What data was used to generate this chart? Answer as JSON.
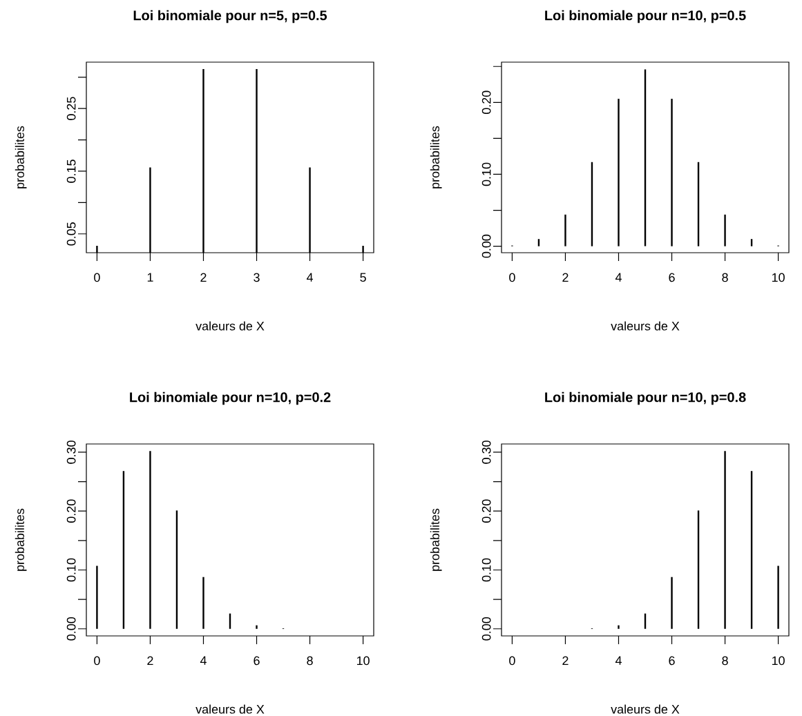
{
  "chart_data": [
    {
      "type": "bar",
      "title": "Loi binomiale pour n=5, p=0.5",
      "xlabel": "valeurs de X",
      "ylabel": "probabilites",
      "color": "#000000",
      "x": [
        0,
        1,
        2,
        3,
        4,
        5
      ],
      "values": [
        0.031,
        0.156,
        0.313,
        0.313,
        0.156,
        0.031
      ],
      "xlim": [
        -0.2,
        5.2
      ],
      "xticks": [
        {
          "value": 0,
          "label": "0"
        },
        {
          "value": 1,
          "label": "1"
        },
        {
          "value": 2,
          "label": "2"
        },
        {
          "value": 3,
          "label": "3"
        },
        {
          "value": 4,
          "label": "4"
        },
        {
          "value": 5,
          "label": "5"
        }
      ],
      "ylim": [
        0.02,
        0.324
      ],
      "yticks": [
        {
          "value": 0.05,
          "label": "0.05"
        },
        {
          "value": 0.1,
          "label": null
        },
        {
          "value": 0.15,
          "label": "0.15"
        },
        {
          "value": 0.2,
          "label": null
        },
        {
          "value": 0.25,
          "label": "0.25"
        },
        {
          "value": 0.3,
          "label": null
        }
      ]
    },
    {
      "type": "bar",
      "title": "Loi binomiale pour n=10, p=0.5",
      "xlabel": "valeurs de X",
      "ylabel": "probabilites",
      "color": "#000000",
      "x": [
        0,
        1,
        2,
        3,
        4,
        5,
        6,
        7,
        8,
        9,
        10
      ],
      "values": [
        0.001,
        0.01,
        0.044,
        0.117,
        0.205,
        0.246,
        0.205,
        0.117,
        0.044,
        0.01,
        0.001
      ],
      "xlim": [
        -0.4,
        10.4
      ],
      "xticks": [
        {
          "value": 0,
          "label": "0"
        },
        {
          "value": 2,
          "label": "2"
        },
        {
          "value": 4,
          "label": "4"
        },
        {
          "value": 6,
          "label": "6"
        },
        {
          "value": 8,
          "label": "8"
        },
        {
          "value": 10,
          "label": "10"
        }
      ],
      "ylim": [
        -0.009,
        0.256
      ],
      "yticks": [
        {
          "value": 0,
          "label": "0.00"
        },
        {
          "value": 0.05,
          "label": null
        },
        {
          "value": 0.1,
          "label": "0.10"
        },
        {
          "value": 0.15,
          "label": null
        },
        {
          "value": 0.2,
          "label": "0.20"
        },
        {
          "value": 0.25,
          "label": null
        }
      ]
    },
    {
      "type": "bar",
      "title": "Loi binomiale pour n=10, p=0.2",
      "xlabel": "valeurs de X",
      "ylabel": "probabilites",
      "color": "#000000",
      "x": [
        0,
        1,
        2,
        3,
        4,
        5,
        6,
        7,
        8,
        9,
        10
      ],
      "values": [
        0.107,
        0.268,
        0.302,
        0.201,
        0.088,
        0.026,
        0.006,
        0.001,
        0.0,
        0.0,
        0.0
      ],
      "xlim": [
        -0.4,
        10.4
      ],
      "xticks": [
        {
          "value": 0,
          "label": "0"
        },
        {
          "value": 2,
          "label": "2"
        },
        {
          "value": 4,
          "label": "4"
        },
        {
          "value": 6,
          "label": "6"
        },
        {
          "value": 8,
          "label": "8"
        },
        {
          "value": 10,
          "label": "10"
        }
      ],
      "ylim": [
        -0.012,
        0.314
      ],
      "yticks": [
        {
          "value": 0,
          "label": "0.00"
        },
        {
          "value": 0.05,
          "label": null
        },
        {
          "value": 0.1,
          "label": "0.10"
        },
        {
          "value": 0.15,
          "label": null
        },
        {
          "value": 0.2,
          "label": "0.20"
        },
        {
          "value": 0.25,
          "label": null
        },
        {
          "value": 0.3,
          "label": "0.30"
        }
      ]
    },
    {
      "type": "bar",
      "title": "Loi binomiale pour n=10, p=0.8",
      "xlabel": "valeurs de X",
      "ylabel": "probabilites",
      "color": "#000000",
      "x": [
        0,
        1,
        2,
        3,
        4,
        5,
        6,
        7,
        8,
        9,
        10
      ],
      "values": [
        0.0,
        0.0,
        0.0,
        0.001,
        0.006,
        0.026,
        0.088,
        0.201,
        0.302,
        0.268,
        0.107
      ],
      "xlim": [
        -0.4,
        10.4
      ],
      "xticks": [
        {
          "value": 0,
          "label": "0"
        },
        {
          "value": 2,
          "label": "2"
        },
        {
          "value": 4,
          "label": "4"
        },
        {
          "value": 6,
          "label": "6"
        },
        {
          "value": 8,
          "label": "8"
        },
        {
          "value": 10,
          "label": "10"
        }
      ],
      "ylim": [
        -0.012,
        0.314
      ],
      "yticks": [
        {
          "value": 0,
          "label": "0.00"
        },
        {
          "value": 0.05,
          "label": null
        },
        {
          "value": 0.1,
          "label": "0.10"
        },
        {
          "value": 0.15,
          "label": null
        },
        {
          "value": 0.2,
          "label": "0.20"
        },
        {
          "value": 0.25,
          "label": null
        },
        {
          "value": 0.3,
          "label": "0.30"
        }
      ]
    }
  ]
}
